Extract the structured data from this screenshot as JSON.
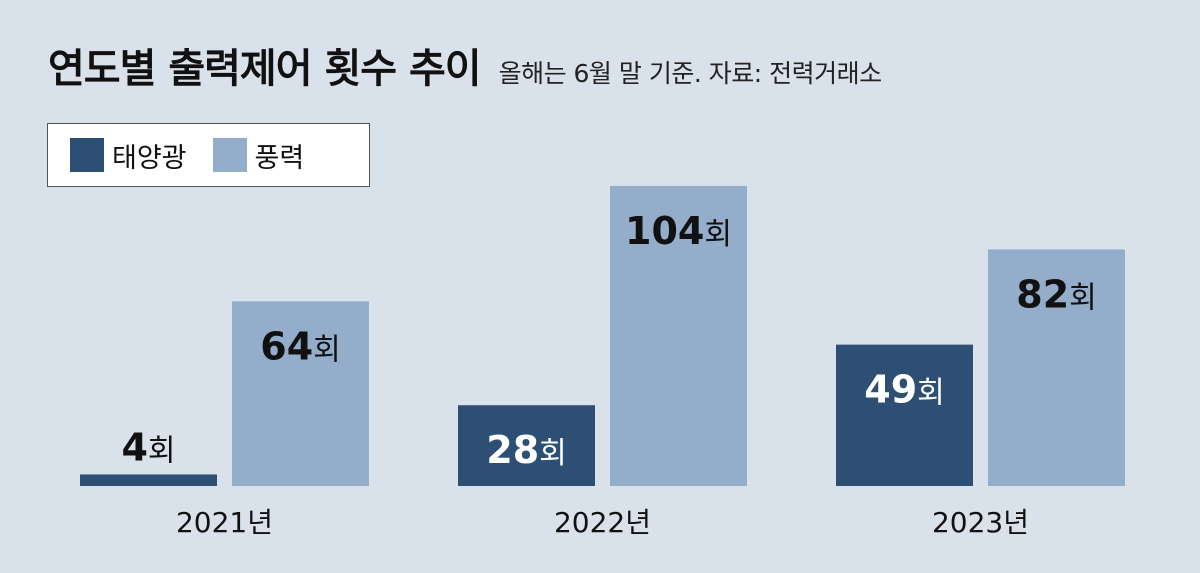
{
  "header": {
    "title": "연도별 출력제어 횟수 추이",
    "subtitle": "올해는 6월 말 기준. 자료: 전력거래소"
  },
  "legend": [
    {
      "label": "태양광",
      "color": "#2d4f74"
    },
    {
      "label": "풍력",
      "color": "#93adcb"
    }
  ],
  "chart_data": {
    "type": "bar",
    "categories": [
      "2021년",
      "2022년",
      "2023년"
    ],
    "series": [
      {
        "name": "태양광",
        "values": [
          4,
          28,
          49
        ],
        "color": "#2d4f74"
      },
      {
        "name": "풍력",
        "values": [
          64,
          104,
          82
        ],
        "color": "#93adcb"
      }
    ],
    "unit": "회",
    "legend_position": "top-left"
  }
}
